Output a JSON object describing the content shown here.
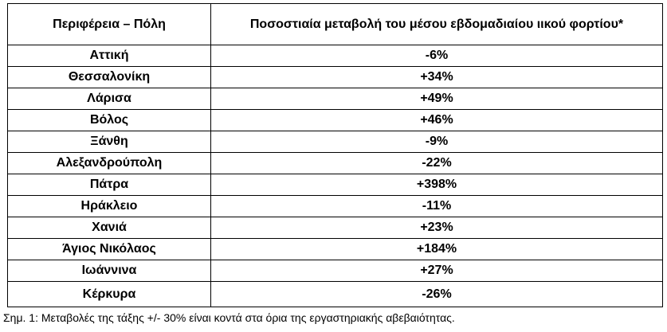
{
  "table": {
    "headers": {
      "region": "Περιφέρεια – Πόλη",
      "change": "Ποσοστιαία μεταβολή του μέσου εβδομαδιαίου ιικού φορτίου*"
    },
    "rows": [
      {
        "city": "Αττική",
        "change": "-6%"
      },
      {
        "city": "Θεσσαλονίκη",
        "change": "+34%"
      },
      {
        "city": "Λάρισα",
        "change": "+49%"
      },
      {
        "city": "Βόλος",
        "change": "+46%"
      },
      {
        "city": "Ξάνθη",
        "change": "-9%"
      },
      {
        "city": "Αλεξανδρούπολη",
        "change": "-22%"
      },
      {
        "city": "Πάτρα",
        "change": "+398%"
      },
      {
        "city": "Ηράκλειο",
        "change": "-11%"
      },
      {
        "city": "Χανιά",
        "change": "+23%"
      },
      {
        "city": "Άγιος Νικόλαος",
        "change": "+184%"
      },
      {
        "city": "Ιωάννινα",
        "change": "+27%"
      },
      {
        "city": "Κέρκυρα",
        "change": "-26%"
      }
    ]
  },
  "footnote": "Σημ. 1: Μεταβολές της τάξης +/- 30% είναι κοντά στα όρια της εργαστηριακής αβεβαιότητας."
}
